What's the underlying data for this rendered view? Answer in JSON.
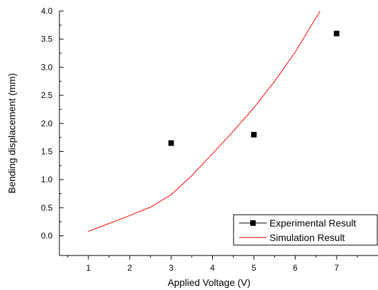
{
  "chart_data": {
    "type": "line",
    "xlabel": "Applied Voltage (V)",
    "ylabel": "Bending displacement (mm)",
    "xlim": [
      0.3,
      8.0
    ],
    "ylim": [
      -0.35,
      4.0
    ],
    "x_ticks": [
      1,
      2,
      3,
      4,
      5,
      6,
      7
    ],
    "x_tick_labels": [
      "1",
      "2",
      "3",
      "4",
      "5",
      "6",
      "7"
    ],
    "y_ticks": [
      0.0,
      0.5,
      1.0,
      1.5,
      2.0,
      2.5,
      3.0,
      3.5,
      4.0
    ],
    "y_tick_labels": [
      "0.0",
      "0.5",
      "1.0",
      "1.5",
      "2.0",
      "2.5",
      "3.0",
      "3.5",
      "4.0"
    ],
    "grid": false,
    "legend_position": "bottom-right",
    "series": [
      {
        "name": "Experimental Result",
        "style": "scatter",
        "marker": "square",
        "color": "#000000",
        "x": [
          3,
          5,
          7
        ],
        "y": [
          1.65,
          1.8,
          3.6
        ]
      },
      {
        "name": "Simulation Result",
        "style": "line",
        "color": "#ff0000",
        "x": [
          1.0,
          1.5,
          2.0,
          2.5,
          3.0,
          3.5,
          4.0,
          4.5,
          5.0,
          5.5,
          6.0,
          6.6
        ],
        "y": [
          0.08,
          0.22,
          0.36,
          0.51,
          0.73,
          1.07,
          1.46,
          1.86,
          2.28,
          2.75,
          3.27,
          4.0
        ]
      }
    ]
  }
}
